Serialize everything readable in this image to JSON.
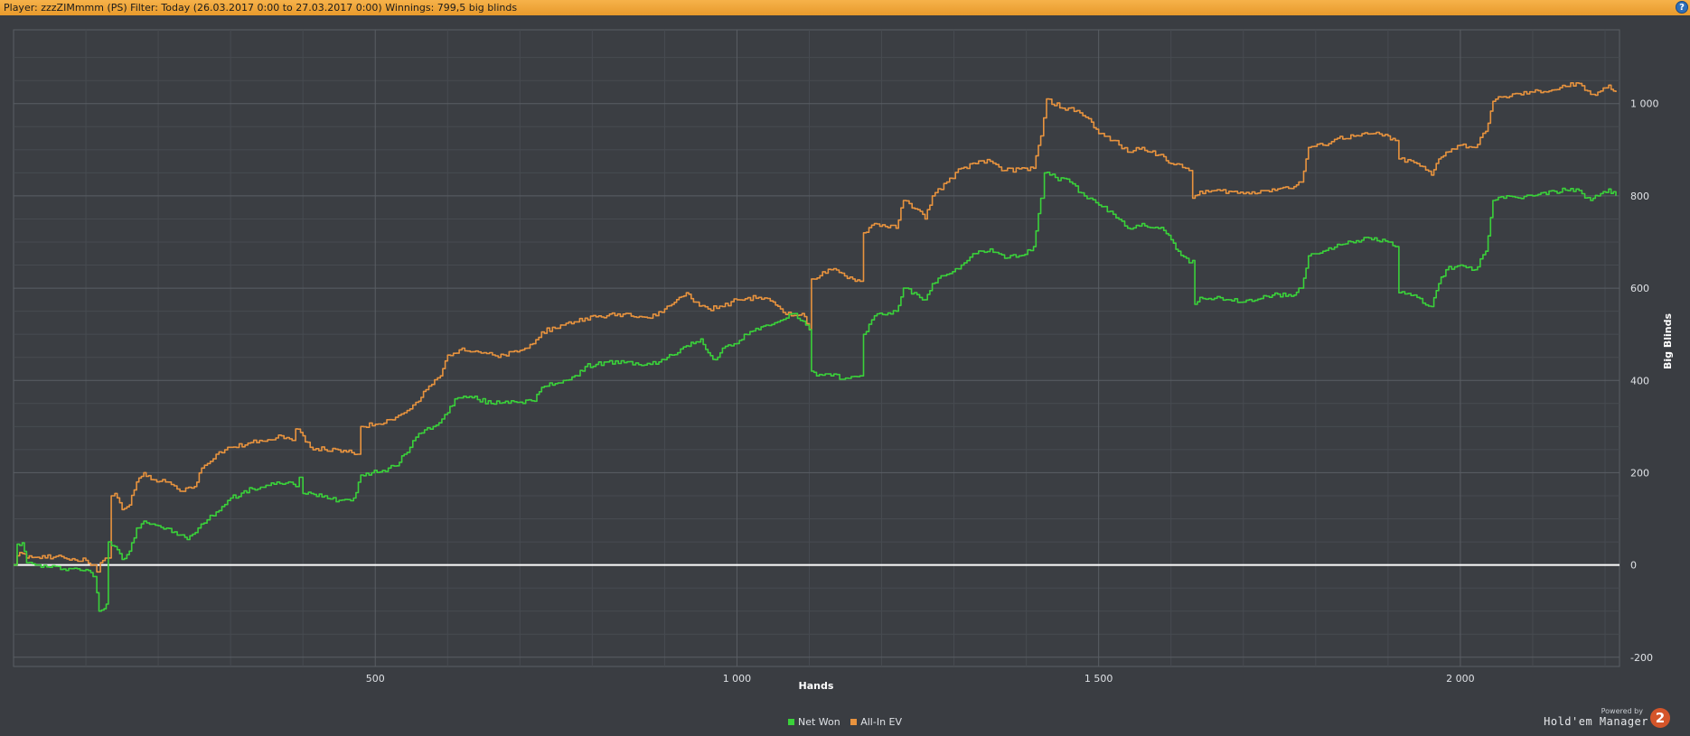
{
  "header": {
    "title": "Player: zzzZIMmmm (PS) Filter: Today (26.03.2017 0:00 to 27.03.2017 0:00) Winnings: 799,5 big blinds",
    "help_label": "?"
  },
  "brand": {
    "powered_by": "Powered by",
    "product": "Hold'em Manager",
    "logo_text": "2"
  },
  "colors": {
    "background": "#3a3d42",
    "plot_background": "#3b3e43",
    "grid_major": "#5a5e64",
    "grid_minor": "#474b51",
    "zero_line": "#ffffff",
    "net_won": "#3ad13a",
    "all_in_ev": "#e8933e",
    "title_bar": "#f2a73c"
  },
  "chart_data": {
    "type": "line",
    "xlabel": "Hands",
    "ylabel": "Big Blinds",
    "xlim": [
      0,
      2220
    ],
    "ylim": [
      -220,
      1160
    ],
    "xticks": [
      {
        "value": 500,
        "label": "500"
      },
      {
        "value": 1000,
        "label": "1 000"
      },
      {
        "value": 1500,
        "label": "1 500"
      },
      {
        "value": 2000,
        "label": "2 000"
      }
    ],
    "yticks": [
      {
        "value": -200,
        "label": "-200"
      },
      {
        "value": 0,
        "label": "0"
      },
      {
        "value": 200,
        "label": "200"
      },
      {
        "value": 400,
        "label": "400"
      },
      {
        "value": 600,
        "label": "600"
      },
      {
        "value": 800,
        "label": "800"
      },
      {
        "value": 1000,
        "label": "1 000"
      }
    ],
    "grid": true,
    "legend_position": "bottom-center",
    "series": [
      {
        "name": "Net Won",
        "color": "#3ad13a",
        "points": [
          [
            0,
            0
          ],
          [
            5,
            45
          ],
          [
            12,
            48
          ],
          [
            18,
            5
          ],
          [
            30,
            0
          ],
          [
            50,
            -5
          ],
          [
            80,
            -8
          ],
          [
            100,
            -10
          ],
          [
            110,
            -25
          ],
          [
            115,
            -60
          ],
          [
            118,
            -100
          ],
          [
            125,
            -95
          ],
          [
            128,
            -85
          ],
          [
            131,
            50
          ],
          [
            140,
            40
          ],
          [
            150,
            12
          ],
          [
            160,
            30
          ],
          [
            170,
            80
          ],
          [
            180,
            95
          ],
          [
            200,
            85
          ],
          [
            230,
            65
          ],
          [
            240,
            55
          ],
          [
            255,
            80
          ],
          [
            280,
            115
          ],
          [
            300,
            145
          ],
          [
            330,
            165
          ],
          [
            360,
            175
          ],
          [
            380,
            180
          ],
          [
            390,
            170
          ],
          [
            395,
            190
          ],
          [
            400,
            155
          ],
          [
            430,
            150
          ],
          [
            450,
            140
          ],
          [
            470,
            145
          ],
          [
            480,
            195
          ],
          [
            510,
            205
          ],
          [
            530,
            215
          ],
          [
            540,
            240
          ],
          [
            560,
            285
          ],
          [
            580,
            300
          ],
          [
            600,
            330
          ],
          [
            610,
            360
          ],
          [
            630,
            365
          ],
          [
            660,
            350
          ],
          [
            680,
            355
          ],
          [
            720,
            355
          ],
          [
            730,
            385
          ],
          [
            760,
            400
          ],
          [
            780,
            410
          ],
          [
            790,
            430
          ],
          [
            820,
            440
          ],
          [
            880,
            435
          ],
          [
            900,
            445
          ],
          [
            910,
            455
          ],
          [
            930,
            475
          ],
          [
            940,
            480
          ],
          [
            950,
            490
          ],
          [
            960,
            460
          ],
          [
            970,
            445
          ],
          [
            980,
            470
          ],
          [
            1000,
            480
          ],
          [
            1010,
            500
          ],
          [
            1030,
            510
          ],
          [
            1040,
            520
          ],
          [
            1060,
            530
          ],
          [
            1080,
            545
          ],
          [
            1095,
            520
          ],
          [
            1100,
            510
          ],
          [
            1103,
            420
          ],
          [
            1110,
            410
          ],
          [
            1130,
            410
          ],
          [
            1150,
            405
          ],
          [
            1170,
            410
          ],
          [
            1175,
            500
          ],
          [
            1190,
            540
          ],
          [
            1220,
            550
          ],
          [
            1230,
            600
          ],
          [
            1260,
            575
          ],
          [
            1270,
            610
          ],
          [
            1290,
            630
          ],
          [
            1310,
            650
          ],
          [
            1330,
            675
          ],
          [
            1350,
            685
          ],
          [
            1370,
            665
          ],
          [
            1390,
            670
          ],
          [
            1410,
            690
          ],
          [
            1420,
            795
          ],
          [
            1425,
            850
          ],
          [
            1440,
            840
          ],
          [
            1460,
            830
          ],
          [
            1480,
            800
          ],
          [
            1500,
            780
          ],
          [
            1520,
            760
          ],
          [
            1540,
            730
          ],
          [
            1560,
            740
          ],
          [
            1590,
            725
          ],
          [
            1600,
            705
          ],
          [
            1610,
            680
          ],
          [
            1625,
            655
          ],
          [
            1630,
            660
          ],
          [
            1633,
            565
          ],
          [
            1640,
            580
          ],
          [
            1680,
            575
          ],
          [
            1700,
            570
          ],
          [
            1740,
            585
          ],
          [
            1770,
            585
          ],
          [
            1780,
            600
          ],
          [
            1790,
            670
          ],
          [
            1810,
            680
          ],
          [
            1830,
            695
          ],
          [
            1860,
            700
          ],
          [
            1870,
            710
          ],
          [
            1900,
            700
          ],
          [
            1910,
            690
          ],
          [
            1915,
            590
          ],
          [
            1940,
            580
          ],
          [
            1960,
            560
          ],
          [
            1970,
            610
          ],
          [
            1980,
            640
          ],
          [
            2000,
            650
          ],
          [
            2020,
            640
          ],
          [
            2035,
            680
          ],
          [
            2045,
            790
          ],
          [
            2060,
            795
          ],
          [
            2100,
            800
          ],
          [
            2130,
            810
          ],
          [
            2160,
            815
          ],
          [
            2180,
            790
          ],
          [
            2190,
            800
          ],
          [
            2205,
            815
          ],
          [
            2215,
            800
          ]
        ]
      },
      {
        "name": "All-In EV",
        "color": "#e8933e",
        "points": [
          [
            0,
            0
          ],
          [
            5,
            20
          ],
          [
            12,
            25
          ],
          [
            18,
            15
          ],
          [
            40,
            20
          ],
          [
            70,
            15
          ],
          [
            100,
            10
          ],
          [
            110,
            0
          ],
          [
            115,
            -15
          ],
          [
            120,
            5
          ],
          [
            130,
            15
          ],
          [
            135,
            150
          ],
          [
            140,
            155
          ],
          [
            150,
            120
          ],
          [
            160,
            130
          ],
          [
            170,
            180
          ],
          [
            180,
            200
          ],
          [
            190,
            185
          ],
          [
            210,
            180
          ],
          [
            230,
            160
          ],
          [
            250,
            170
          ],
          [
            260,
            210
          ],
          [
            280,
            240
          ],
          [
            300,
            255
          ],
          [
            320,
            260
          ],
          [
            340,
            270
          ],
          [
            370,
            280
          ],
          [
            385,
            270
          ],
          [
            390,
            295
          ],
          [
            400,
            280
          ],
          [
            410,
            255
          ],
          [
            430,
            250
          ],
          [
            460,
            245
          ],
          [
            475,
            240
          ],
          [
            480,
            300
          ],
          [
            500,
            305
          ],
          [
            520,
            315
          ],
          [
            540,
            330
          ],
          [
            560,
            355
          ],
          [
            570,
            380
          ],
          [
            590,
            410
          ],
          [
            600,
            455
          ],
          [
            620,
            470
          ],
          [
            650,
            460
          ],
          [
            670,
            450
          ],
          [
            700,
            465
          ],
          [
            710,
            470
          ],
          [
            730,
            505
          ],
          [
            760,
            520
          ],
          [
            790,
            535
          ],
          [
            820,
            540
          ],
          [
            850,
            545
          ],
          [
            880,
            535
          ],
          [
            900,
            555
          ],
          [
            910,
            565
          ],
          [
            920,
            580
          ],
          [
            930,
            590
          ],
          [
            940,
            570
          ],
          [
            960,
            555
          ],
          [
            980,
            560
          ],
          [
            1000,
            575
          ],
          [
            1030,
            580
          ],
          [
            1050,
            570
          ],
          [
            1060,
            555
          ],
          [
            1075,
            540
          ],
          [
            1090,
            545
          ],
          [
            1100,
            510
          ],
          [
            1103,
            620
          ],
          [
            1130,
            640
          ],
          [
            1160,
            620
          ],
          [
            1170,
            615
          ],
          [
            1175,
            720
          ],
          [
            1190,
            740
          ],
          [
            1220,
            730
          ],
          [
            1230,
            790
          ],
          [
            1250,
            770
          ],
          [
            1260,
            750
          ],
          [
            1270,
            800
          ],
          [
            1290,
            830
          ],
          [
            1310,
            860
          ],
          [
            1330,
            870
          ],
          [
            1350,
            875
          ],
          [
            1370,
            855
          ],
          [
            1410,
            860
          ],
          [
            1420,
            930
          ],
          [
            1428,
            1010
          ],
          [
            1450,
            990
          ],
          [
            1470,
            985
          ],
          [
            1490,
            960
          ],
          [
            1500,
            935
          ],
          [
            1520,
            920
          ],
          [
            1540,
            895
          ],
          [
            1560,
            905
          ],
          [
            1590,
            885
          ],
          [
            1600,
            870
          ],
          [
            1620,
            860
          ],
          [
            1625,
            855
          ],
          [
            1630,
            795
          ],
          [
            1640,
            810
          ],
          [
            1680,
            810
          ],
          [
            1700,
            805
          ],
          [
            1740,
            815
          ],
          [
            1770,
            820
          ],
          [
            1780,
            830
          ],
          [
            1790,
            905
          ],
          [
            1810,
            910
          ],
          [
            1830,
            925
          ],
          [
            1860,
            930
          ],
          [
            1880,
            935
          ],
          [
            1900,
            930
          ],
          [
            1910,
            920
          ],
          [
            1915,
            880
          ],
          [
            1940,
            870
          ],
          [
            1960,
            845
          ],
          [
            1970,
            880
          ],
          [
            1980,
            895
          ],
          [
            2000,
            910
          ],
          [
            2020,
            905
          ],
          [
            2035,
            940
          ],
          [
            2045,
            1005
          ],
          [
            2060,
            1015
          ],
          [
            2100,
            1025
          ],
          [
            2130,
            1030
          ],
          [
            2160,
            1045
          ],
          [
            2180,
            1020
          ],
          [
            2190,
            1025
          ],
          [
            2205,
            1040
          ],
          [
            2215,
            1025
          ]
        ]
      }
    ]
  }
}
